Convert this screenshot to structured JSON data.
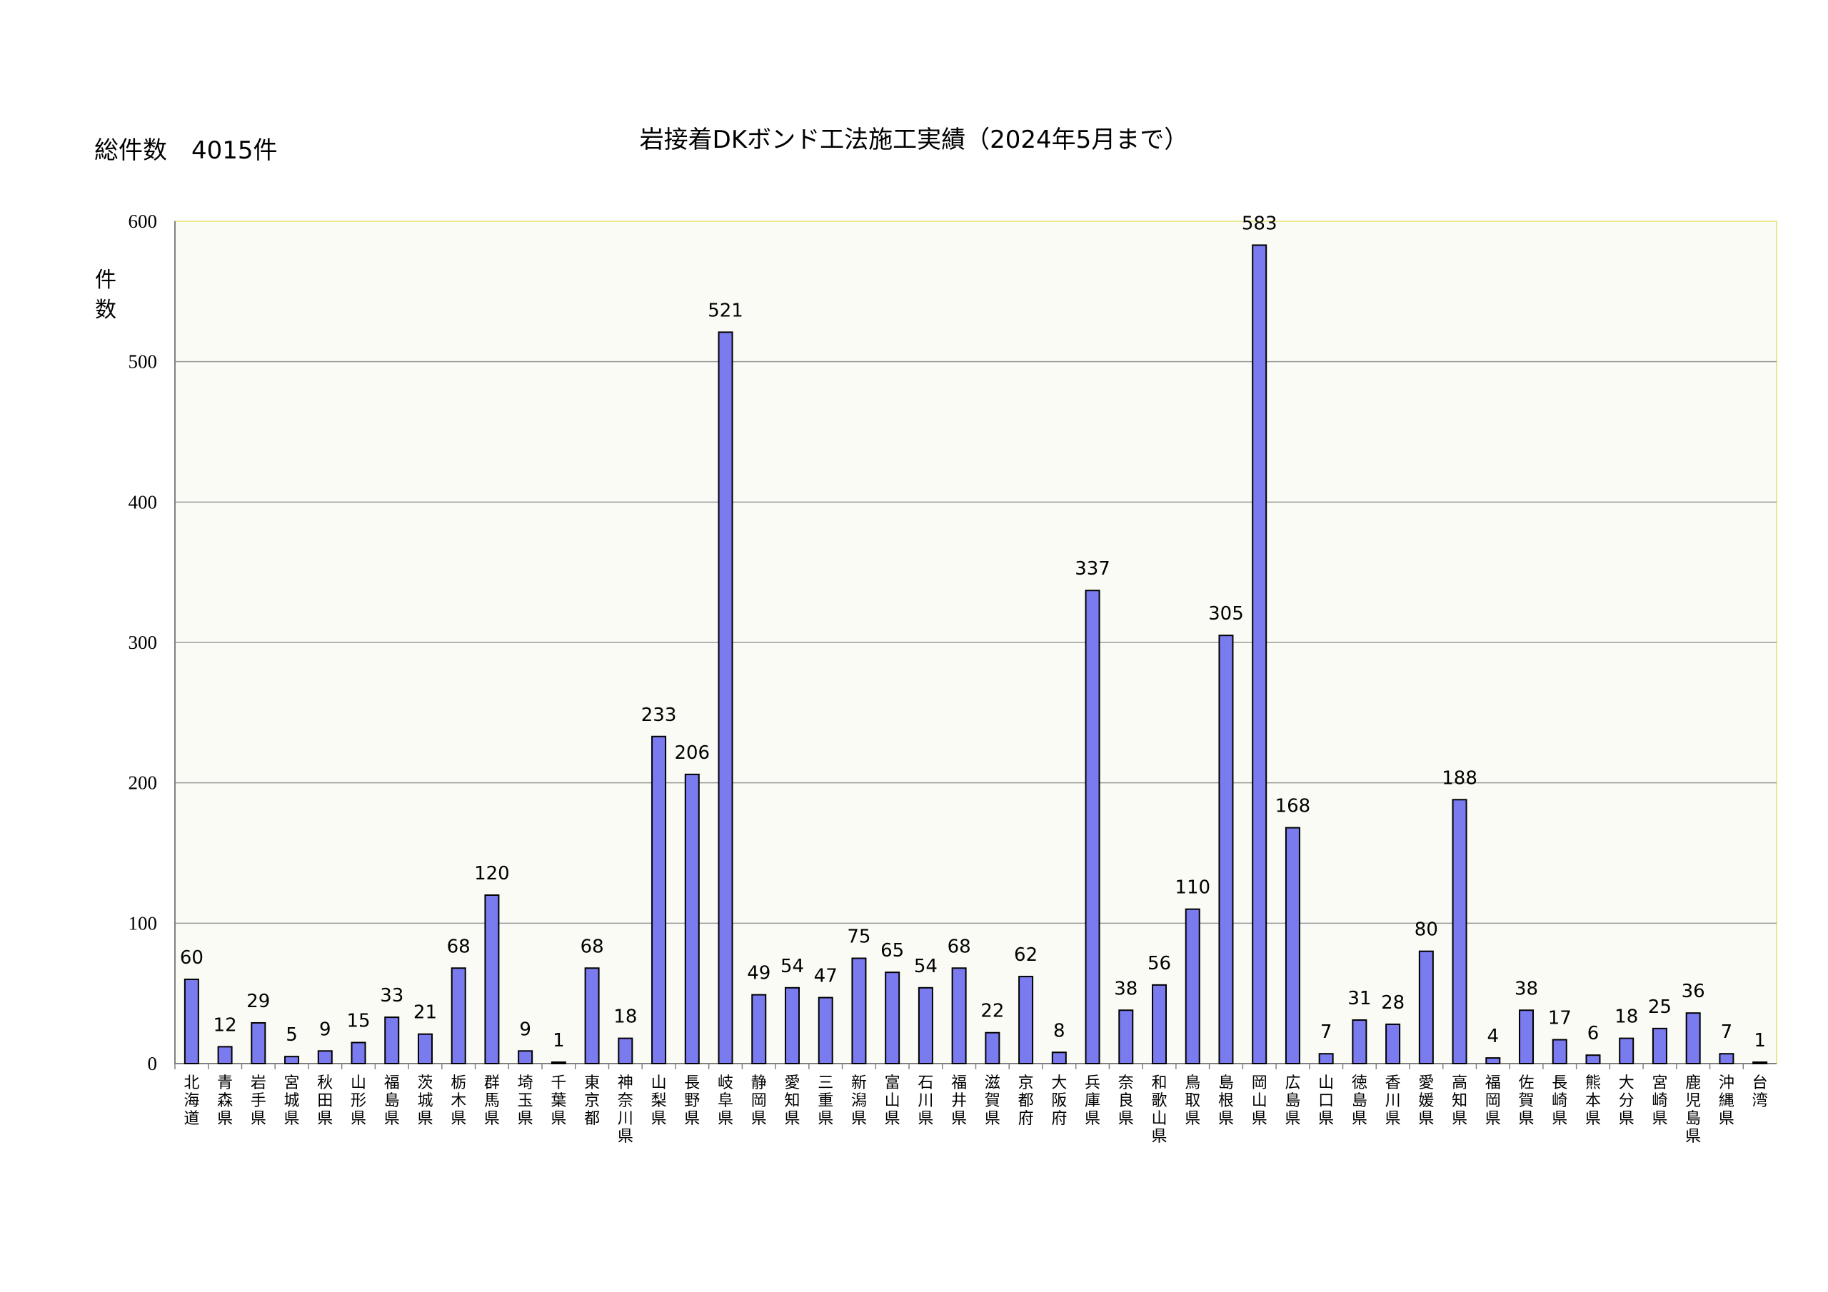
{
  "header": {
    "total_label": "総件数　4015件"
  },
  "chart_data": {
    "type": "bar",
    "title": "岩接着DKボンド工法施工実績（2024年5月まで）",
    "xlabel": "",
    "ylabel": "件数",
    "ylim": [
      0,
      600
    ],
    "yticks": [
      0,
      100,
      200,
      300,
      400,
      500,
      600
    ],
    "grid": true,
    "legend": "none",
    "colors": {
      "bar_fill": "#7b7bf0",
      "bar_stroke": "#000000",
      "plot_bg": "#fbfbf5",
      "plot_border": "#e8e890",
      "grid": "#999999"
    },
    "categories": [
      "北海道",
      "青森県",
      "岩手県",
      "宮城県",
      "秋田県",
      "山形県",
      "福島県",
      "茨城県",
      "栃木県",
      "群馬県",
      "埼玉県",
      "千葉県",
      "東京都",
      "神奈川県",
      "山梨県",
      "長野県",
      "岐阜県",
      "静岡県",
      "愛知県",
      "三重県",
      "新潟県",
      "富山県",
      "石川県",
      "福井県",
      "滋賀県",
      "京都府",
      "大阪府",
      "兵庫県",
      "奈良県",
      "和歌山県",
      "鳥取県",
      "島根県",
      "岡山県",
      "広島県",
      "山口県",
      "徳島県",
      "香川県",
      "愛媛県",
      "高知県",
      "福岡県",
      "佐賀県",
      "長崎県",
      "熊本県",
      "大分県",
      "宮崎県",
      "鹿児島県",
      "沖縄県",
      "台湾"
    ],
    "values": [
      60,
      12,
      29,
      5,
      9,
      15,
      33,
      21,
      68,
      120,
      9,
      1,
      68,
      18,
      233,
      206,
      521,
      49,
      54,
      47,
      75,
      65,
      54,
      68,
      22,
      62,
      8,
      337,
      38,
      56,
      110,
      305,
      583,
      168,
      7,
      31,
      28,
      80,
      188,
      4,
      38,
      17,
      6,
      18,
      25,
      36,
      7,
      1
    ]
  }
}
